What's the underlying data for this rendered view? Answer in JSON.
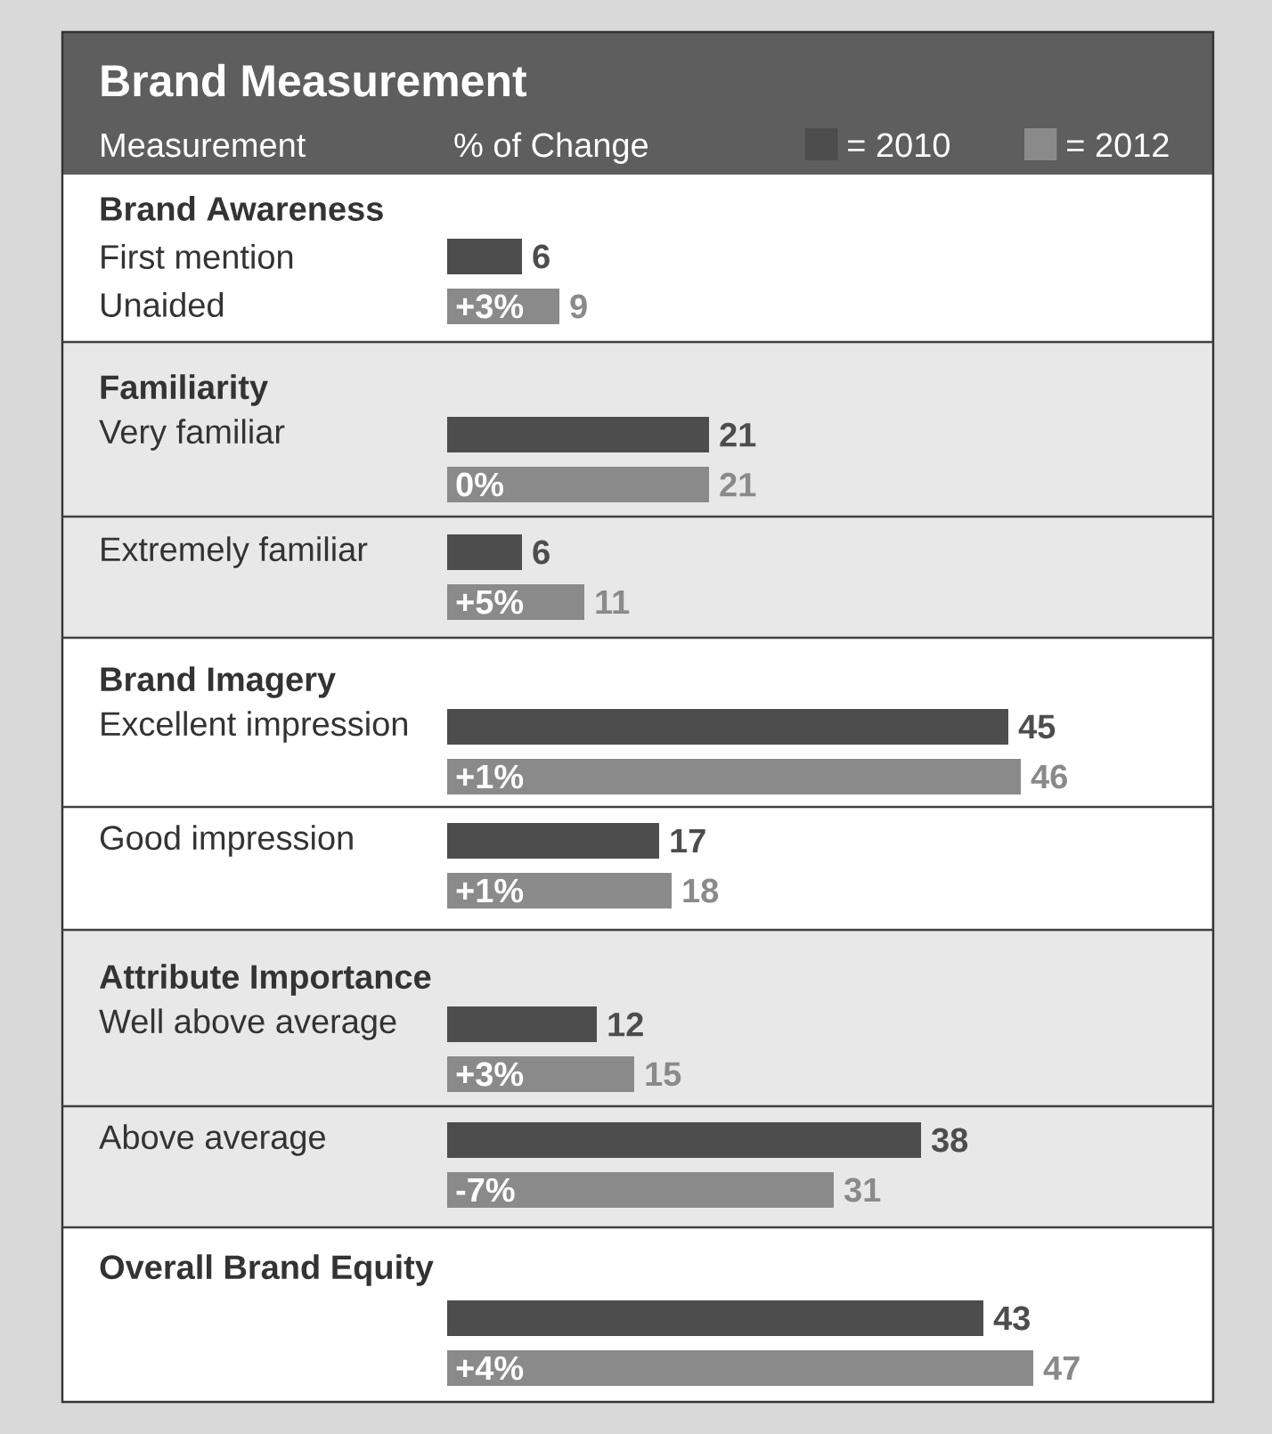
{
  "chart_data": {
    "type": "bar",
    "orientation": "horizontal",
    "title": "Brand Measurement",
    "ylabel": "Measurement",
    "xlabel": "% of Change",
    "categories": [
      "First mention",
      "Very familiar",
      "Extremely familiar",
      "Excellent impression",
      "Good impression",
      "Well above average",
      "Above average",
      null
    ],
    "series": [
      {
        "name": "= 2010",
        "color": "#4d4d4d",
        "values": [
          6,
          21,
          6,
          45,
          17,
          12,
          38,
          43
        ]
      },
      {
        "name": "= 2012",
        "color": "#8a8a8a",
        "values": [
          9,
          21,
          11,
          46,
          18,
          15,
          31,
          47
        ]
      }
    ],
    "data_labels": true,
    "legend": "top right",
    "annotations": [
      "Brand Awareness",
      "Familiarity",
      "Brand Imagery",
      "Attribute Importance",
      "Overall Brand Equity",
      "Unaided",
      "+3%",
      "0%",
      "+5%",
      "+1%",
      "+1%",
      "+3%",
      "-7%",
      "+4%"
    ]
  }
}
